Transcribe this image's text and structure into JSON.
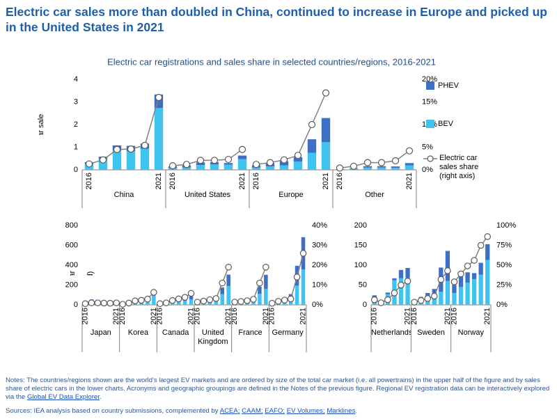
{
  "header": {
    "title": "Electric car sales more than doubled in China, continued to increase in Europe and picked up in the United States in 2021"
  },
  "chart_data": [
    {
      "type": "bar",
      "title": "Electric car registrations and sales share in selected countries/regions, 2016-2021",
      "ylabel": "Electric car sales (million)",
      "ylim": [
        0,
        4
      ],
      "yticks": [
        0,
        1,
        2,
        3,
        4
      ],
      "y2lim": [
        0,
        20
      ],
      "y2ticks": [
        {
          "value": 0,
          "label": "0%"
        },
        {
          "value": 5,
          "label": "5%"
        },
        {
          "value": 10,
          "label": "10%"
        },
        {
          "value": 15,
          "label": "15%"
        },
        {
          "value": 20,
          "label": "20%"
        }
      ],
      "legend": "right",
      "series": [
        {
          "name": "BEV",
          "color": "#3fc3ef"
        },
        {
          "name": "PHEV",
          "color": "#3c6fc5"
        },
        {
          "name": "Electric car sales share (right axis)",
          "color": "#808080",
          "axis": "y2"
        }
      ],
      "groups": [
        {
          "name": "China",
          "categories": [
            "2016",
            null,
            null,
            null,
            null,
            "2021"
          ],
          "series": [
            {
              "values": [
                0.26,
                0.47,
                0.84,
                0.83,
                0.93,
                2.73
              ]
            },
            {
              "values": [
                0.08,
                0.11,
                0.24,
                0.23,
                0.23,
                0.6
              ]
            },
            {
              "values": [
                1.3,
                2.2,
                4.5,
                4.6,
                5.4,
                16
              ]
            }
          ]
        },
        {
          "name": "United States",
          "categories": [
            "2016",
            null,
            null,
            null,
            null,
            "2021"
          ],
          "series": [
            {
              "values": [
                0.08,
                0.1,
                0.21,
                0.24,
                0.23,
                0.47
              ]
            },
            {
              "values": [
                0.07,
                0.09,
                0.12,
                0.09,
                0.07,
                0.16
              ]
            },
            {
              "values": [
                0.9,
                1.2,
                2.1,
                2.1,
                2.3,
                4.5
              ]
            }
          ]
        },
        {
          "name": "Europe",
          "categories": [
            "2016",
            null,
            null,
            null,
            null,
            "2021"
          ],
          "series": [
            {
              "values": [
                0.1,
                0.15,
                0.2,
                0.36,
                0.75,
                1.22
              ]
            },
            {
              "values": [
                0.1,
                0.15,
                0.18,
                0.2,
                0.6,
                1.07
              ]
            },
            {
              "values": [
                1.2,
                1.6,
                2.2,
                3.2,
                10,
                17
              ]
            }
          ]
        },
        {
          "name": "Other",
          "categories": [
            "2016",
            null,
            null,
            null,
            null,
            "2021"
          ],
          "series": [
            {
              "values": [
                0.02,
                0.05,
                0.1,
                0.1,
                0.09,
                0.2
              ]
            },
            {
              "values": [
                0.01,
                0.02,
                0.06,
                0.06,
                0.06,
                0.1
              ]
            },
            {
              "values": [
                0.4,
                0.8,
                1.6,
                1.6,
                2,
                4.2
              ]
            }
          ]
        }
      ]
    },
    {
      "type": "bar",
      "ylabel": "Electric car sales (thousand)",
      "ylim": [
        0,
        800
      ],
      "yticks": [
        0,
        200,
        400,
        600,
        800
      ],
      "y2lim": [
        0,
        40
      ],
      "y2ticks": [
        {
          "value": 0,
          "label": "0%"
        },
        {
          "value": 10,
          "label": "10%"
        },
        {
          "value": 20,
          "label": "20%"
        },
        {
          "value": 30,
          "label": "30%"
        },
        {
          "value": 40,
          "label": "40%"
        }
      ],
      "series": [
        {
          "color": "#3fc3ef"
        },
        {
          "color": "#3c6fc5"
        },
        {
          "color": "#808080",
          "axis": "y2"
        }
      ],
      "groups": [
        {
          "name": "Japan",
          "categories": [
            "2016",
            null,
            null,
            null,
            null,
            "2021"
          ],
          "series": [
            {
              "values": [
                15,
                20,
                26,
                21,
                15,
                21
              ]
            },
            {
              "values": [
                10,
                35,
                24,
                19,
                15,
                24
              ]
            },
            {
              "values": [
                0.6,
                1,
                1,
                0.9,
                0.8,
                1
              ]
            }
          ]
        },
        {
          "name": "Korea",
          "categories": [
            "2016",
            null,
            null,
            null,
            null,
            "2021"
          ],
          "series": [
            {
              "values": [
                5,
                14,
                30,
                35,
                46,
                100
              ]
            },
            {
              "values": [
                0.5,
                1,
                2,
                1,
                2,
                3
              ]
            },
            {
              "values": [
                0.3,
                0.9,
                2,
                2.3,
                2.9,
                6.3
              ]
            }
          ]
        },
        {
          "name": "Canada",
          "categories": [
            "2016",
            null,
            null,
            null,
            null,
            "2021"
          ],
          "series": [
            {
              "values": [
                5,
                8,
                20,
                35,
                40,
                55
              ]
            },
            {
              "values": [
                6,
                10,
                24,
                20,
                22,
                30
              ]
            },
            {
              "values": [
                0.6,
                1,
                2.2,
                3,
                3.8,
                5.8
              ]
            }
          ]
        },
        {
          "name": "United Kingdom",
          "categories": [
            "2016",
            null,
            null,
            null,
            null,
            "2021"
          ],
          "series": [
            {
              "values": [
                10,
                14,
                16,
                38,
                108,
                190
              ]
            },
            {
              "values": [
                27,
                34,
                44,
                37,
                67,
                115
              ]
            },
            {
              "values": [
                1.4,
                1.9,
                2.6,
                3.2,
                11,
                19
              ]
            }
          ]
        },
        {
          "name": "France",
          "categories": [
            "2016",
            null,
            null,
            null,
            null,
            "2021"
          ],
          "series": [
            {
              "values": [
                22,
                25,
                32,
                43,
                111,
                162
              ]
            },
            {
              "values": [
                7,
                12,
                15,
                18,
                74,
                141
              ]
            },
            {
              "values": [
                1.4,
                1.7,
                2.1,
                2.8,
                11,
                19
              ]
            }
          ]
        },
        {
          "name": "Germany",
          "categories": [
            "2016",
            null,
            null,
            null,
            null,
            "2021"
          ],
          "series": [
            {
              "values": [
                11,
                25,
                36,
                63,
                194,
                356
              ]
            },
            {
              "values": [
                14,
                30,
                32,
                45,
                200,
                326
              ]
            },
            {
              "values": [
                0.8,
                1.8,
                2.4,
                3,
                14,
                26
              ]
            }
          ]
        }
      ]
    },
    {
      "type": "bar",
      "ylim": [
        0,
        200
      ],
      "yticks": [
        0,
        50,
        100,
        150,
        200
      ],
      "y2lim": [
        0,
        100
      ],
      "y2ticks": [
        {
          "value": 0,
          "label": "0%"
        },
        {
          "value": 25,
          "label": "25%"
        },
        {
          "value": 50,
          "label": "50%"
        },
        {
          "value": 75,
          "label": "75%"
        },
        {
          "value": 100,
          "label": "100%"
        }
      ],
      "series": [
        {
          "color": "#3fc3ef"
        },
        {
          "color": "#3c6fc5"
        },
        {
          "color": "#808080",
          "axis": "y2"
        }
      ],
      "groups": [
        {
          "name": "Netherlands",
          "categories": [
            "2016",
            null,
            null,
            null,
            null,
            "2021"
          ],
          "series": [
            {
              "values": [
                4,
                9,
                27,
                62,
                67,
                68
              ]
            },
            {
              "values": [
                20,
                2,
                4,
                5,
                21,
                25
              ]
            },
            {
              "values": [
                6.4,
                2.6,
                6.5,
                15,
                25,
                30
              ]
            }
          ]
        },
        {
          "name": "Sweden",
          "categories": [
            "2016",
            null,
            null,
            null,
            null,
            "2021"
          ],
          "series": [
            {
              "values": [
                3,
                5,
                8,
                15,
                33,
                60
              ]
            },
            {
              "values": [
                10,
                15,
                22,
                25,
                61,
                76
              ]
            },
            {
              "values": [
                3.4,
                5.5,
                8,
                11,
                32,
                43
              ]
            }
          ]
        },
        {
          "name": "Norway",
          "categories": [
            "2016",
            null,
            null,
            null,
            null,
            "2021"
          ],
          "series": [
            {
              "values": [
                30,
                45,
                56,
                65,
                76,
                113
              ]
            },
            {
              "values": [
                20,
                26,
                26,
                15,
                30,
                40
              ]
            },
            {
              "values": [
                29,
                39,
                49,
                56,
                75,
                86
              ]
            }
          ]
        }
      ]
    }
  ],
  "notes": [
    {
      "text": "Notes: The countries/regions shown are the world's largest EV markets and are ordered by size of the total car market (i.e. all powertrains) in the upper half of the figure and by sales share of electric cars in the lower charts. Acronyms and geographic groupings are defined in the Notes of the previous figure. Regional EV registration data can be interactively explored via the ",
      "link": false
    },
    {
      "text": "Global EV Data Explorer",
      "link": true
    },
    {
      "text": ".",
      "link": false
    }
  ],
  "sources": [
    {
      "text": "Sources: IEA analysis based on country submissions, complemented by ",
      "link": false
    },
    {
      "text": "ACEA;",
      "link": true
    },
    {
      "text": " ",
      "link": false
    },
    {
      "text": "CAAM;",
      "link": true
    },
    {
      "text": " ",
      "link": false
    },
    {
      "text": "EAFO;",
      "link": true
    },
    {
      "text": " ",
      "link": false
    },
    {
      "text": "EV Volumes;",
      "link": true
    },
    {
      "text": " ",
      "link": false
    },
    {
      "text": "Marklines",
      "link": true
    },
    {
      "text": ".",
      "link": false
    }
  ]
}
